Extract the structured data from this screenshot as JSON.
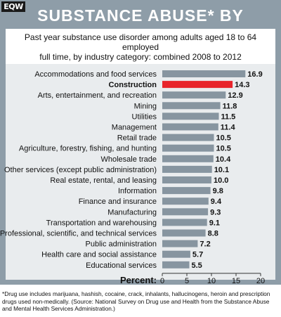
{
  "header": {
    "logo": "EQW",
    "title": "SUBSTANCE ABUSE* BY INDUSTRY",
    "subtitle_line1": "Past year substance use disorder among adults aged 18 to 64 employed",
    "subtitle_line2": "full time, by industry category: combined 2008 to 2012"
  },
  "colors": {
    "frame": "#8e9da8",
    "bar": "#8795a0",
    "highlight_bar": "#e8242b",
    "plot_bg": "#e9ecee"
  },
  "chart_data": {
    "type": "bar",
    "orientation": "horizontal",
    "categories": [
      "Accommodations and food services",
      "Construction",
      "Arts, entertainment, and recreation",
      "Mining",
      "Utilities",
      "Management",
      "Retail trade",
      "Agriculture, forestry, fishing, and hunting",
      "Wholesale trade",
      "Other services (except public administration)",
      "Real estate, rental, and leasing",
      "Information",
      "Finance and insurance",
      "Manufacturing",
      "Transportation and warehousing",
      "Professional, scientific, and technical services",
      "Public administration",
      "Health care and social assistance",
      "Educational services"
    ],
    "values": [
      16.9,
      14.3,
      12.9,
      11.8,
      11.5,
      11.4,
      10.5,
      10.5,
      10.4,
      10.1,
      10.0,
      9.8,
      9.4,
      9.3,
      9.1,
      8.8,
      7.2,
      5.7,
      5.5
    ],
    "value_labels": [
      "16.9",
      "14.3",
      "12.9",
      "11.8",
      "11.5",
      "11.4",
      "10.5",
      "10.5",
      "10.4",
      "10.1",
      "10.0",
      "9.8",
      "9.4",
      "9.3",
      "9.1",
      "8.8",
      "7.2",
      "5.7",
      "5.5"
    ],
    "highlight": "Construction",
    "xlabel": "Percent:",
    "xlim": [
      0,
      20
    ],
    "xticks": [
      "0",
      "5",
      "10",
      "15",
      "20"
    ],
    "grid": false,
    "legend": "none"
  },
  "footnote": "*Drug use includes marijuana, hashish, cocaine, crack, inhalants, hallucinogens, heroin and prescription drugs used non-medically. (Source: National Survey on Drug use and Health from the Substance Abuse and Mental Health Services Administration.)"
}
